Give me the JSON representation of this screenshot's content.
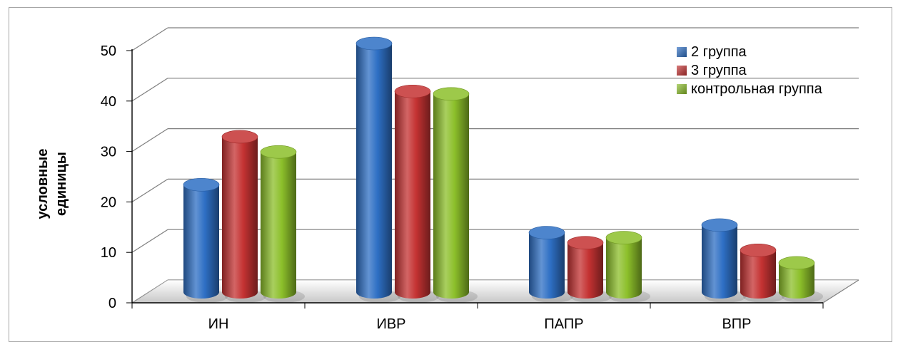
{
  "chart_data": {
    "type": "bar",
    "style": "3d-cylinder",
    "categories": [
      "ИН",
      "ИВР",
      "ПАПР",
      "ВПР"
    ],
    "series": [
      {
        "name": "2 группа",
        "values": [
          22,
          50,
          12.5,
          14
        ],
        "color": "#2e6fc4"
      },
      {
        "name": "3 группа",
        "values": [
          31.5,
          40.5,
          10.5,
          9
        ],
        "color": "#c43232"
      },
      {
        "name": "контрольная группа",
        "values": [
          28.5,
          40,
          11.5,
          6.5
        ],
        "color": "#8cbf2a"
      }
    ],
    "ylabel_lines": [
      "условные",
      "единицы"
    ],
    "ylim": [
      0,
      50
    ],
    "yticks": [
      0,
      10,
      20,
      30,
      40,
      50
    ],
    "grid": true,
    "legend_position": "top-right"
  }
}
